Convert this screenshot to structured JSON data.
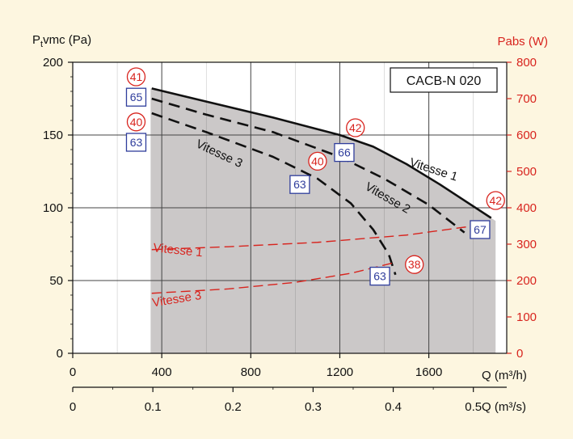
{
  "chart_data": {
    "type": "line",
    "model": "CACB-N 020",
    "ylabel_left_main": "P",
    "ylabel_left_sub": "t",
    "ylabel_left_rest": "vmc (Pa)",
    "ylabel_right": "Pabs (W)",
    "xlabel_top": "Q (m³/h)",
    "xlabel_bottom": "Q (m³/s)",
    "xlim": [
      0,
      1950
    ],
    "ylim_left": [
      0,
      200
    ],
    "ylim_right": [
      0,
      800
    ],
    "x_ticks": [
      "0",
      "400",
      "800",
      "1200",
      "1600"
    ],
    "x_ticks_values": [
      0,
      400,
      800,
      1200,
      1600
    ],
    "x2_ticks": [
      "0",
      "0.1",
      "0.2",
      "0.3",
      "0.4",
      "0.5"
    ],
    "x2_ticks_values": [
      0,
      0.1,
      0.2,
      0.3,
      0.4,
      0.5
    ],
    "y_left_ticks": [
      "0",
      "50",
      "100",
      "150",
      "200"
    ],
    "y_left_values": [
      0,
      50,
      100,
      150,
      200
    ],
    "y_right_ticks": [
      "0",
      "100",
      "200",
      "300",
      "400",
      "500",
      "600",
      "700",
      "800"
    ],
    "y_right_values": [
      0,
      100,
      200,
      300,
      400,
      500,
      600,
      700,
      800
    ],
    "operating_range": {
      "x": [
        350,
        1900
      ]
    },
    "pressure_series": [
      {
        "name": "Vitesse 1",
        "style": "solid",
        "x": [
          355,
          600,
          900,
          1200,
          1350,
          1500,
          1650,
          1800,
          1880
        ],
        "y": [
          182,
          173,
          162,
          150,
          142,
          130,
          116,
          101,
          93
        ]
      },
      {
        "name": "Vitesse 2",
        "style": "dashed",
        "x": [
          355,
          600,
          900,
          1200,
          1400,
          1600,
          1760
        ],
        "y": [
          175,
          164,
          152,
          135,
          120,
          102,
          83
        ]
      },
      {
        "name": "Vitesse 3",
        "style": "dashed",
        "x": [
          355,
          600,
          900,
          1100,
          1250,
          1350,
          1420,
          1450
        ],
        "y": [
          165,
          152,
          135,
          120,
          103,
          85,
          68,
          54
        ]
      }
    ],
    "power_series": [
      {
        "name": "Vitesse 1",
        "style": "dashed",
        "axis": "right",
        "x": [
          355,
          700,
          1100,
          1500,
          1800
        ],
        "y": [
          285,
          293,
          305,
          325,
          350
        ]
      },
      {
        "name": "Vitesse 3",
        "style": "dashed",
        "axis": "right",
        "x": [
          355,
          700,
          1000,
          1250,
          1450
        ],
        "y": [
          165,
          177,
          195,
          220,
          250
        ]
      }
    ],
    "series_labels": [
      {
        "text": "Vitesse 1",
        "color": "#111111",
        "x": 1510,
        "y": 129,
        "rotate": 18
      },
      {
        "text": "Vitesse 2",
        "color": "#111111",
        "x": 1310,
        "y": 113,
        "rotate": 30
      },
      {
        "text": "Vitesse 3",
        "color": "#111111",
        "x": 550,
        "y": 142,
        "rotate": 25
      },
      {
        "text": "Vitesse 1",
        "color": "#d8241e",
        "x": 360,
        "y": 280,
        "axis": "right",
        "rotate": 6
      },
      {
        "text": "Vitesse 3",
        "color": "#d8241e",
        "x": 360,
        "y": 128,
        "axis": "right",
        "rotate": -9
      }
    ],
    "power_badges": [
      {
        "text": "41",
        "x": 285,
        "y": 190
      },
      {
        "text": "40",
        "x": 285,
        "y": 159
      },
      {
        "text": "42",
        "x": 1270,
        "y": 155
      },
      {
        "text": "40",
        "x": 1100,
        "y": 132
      },
      {
        "text": "42",
        "x": 1900,
        "y": 105
      },
      {
        "text": "38",
        "x": 1535,
        "y": 61
      }
    ],
    "sound_badges": [
      {
        "text": "65",
        "x": 285,
        "y": 176
      },
      {
        "text": "63",
        "x": 285,
        "y": 145
      },
      {
        "text": "66",
        "x": 1220,
        "y": 138
      },
      {
        "text": "63",
        "x": 1020,
        "y": 116
      },
      {
        "text": "67",
        "x": 1830,
        "y": 85
      },
      {
        "text": "63",
        "x": 1380,
        "y": 53
      }
    ]
  },
  "colors": {
    "panel_background": "#fdf6e0",
    "plot_background": "#ffffff",
    "operating_area": "#cbc8c8",
    "grid": "#444444",
    "curve": "#111111",
    "power": "#d8241e",
    "sound_badge": "#2f3d9c",
    "power_badge": "#d8241e"
  }
}
